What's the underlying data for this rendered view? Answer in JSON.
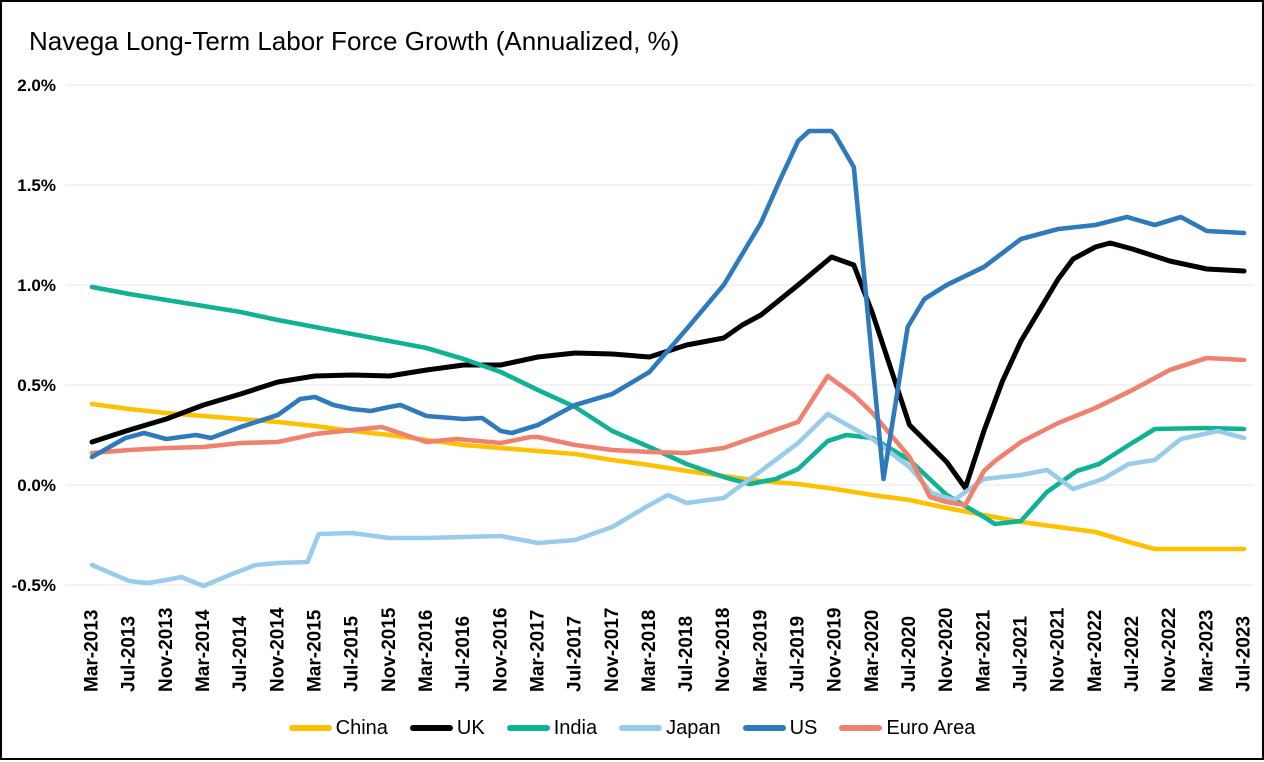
{
  "title": "Navega Long-Term Labor Force Growth (Annualized, %)",
  "chart_data": {
    "type": "line",
    "title": "Navega Long-Term Labor Force Growth (Annualized, %)",
    "grid": true,
    "legend_position": "bottom",
    "y_axis": {
      "ticks": [
        "2.0%",
        "1.5%",
        "1.0%",
        "0.5%",
        "0.0%",
        "-0.5%"
      ],
      "max": 2.0,
      "min": -0.5,
      "step": 0.5,
      "format": "percent"
    },
    "x_labels": [
      "Mar-2013",
      "Jul-2013",
      "Nov-2013",
      "Mar-2014",
      "Jul-2014",
      "Nov-2014",
      "Mar-2015",
      "Jul-2015",
      "Nov-2015",
      "Mar-2016",
      "Jul-2016",
      "Nov-2016",
      "Mar-2017",
      "Jul-2017",
      "Nov-2017",
      "Mar-2018",
      "Jul-2018",
      "Nov-2018",
      "Mar-2019",
      "Jul-2019",
      "Nov-2019",
      "Mar-2020",
      "Jul-2020",
      "Nov-2020",
      "Mar-2021",
      "Jul-2021",
      "Nov-2021",
      "Mar-2022",
      "Jul-2022",
      "Nov-2022",
      "Mar-2023",
      "Jul-2023"
    ],
    "x_unit": "label_index",
    "series": [
      {
        "name": "China",
        "color": "#FFC000",
        "points": [
          [
            0,
            0.405
          ],
          [
            1,
            0.38
          ],
          [
            2,
            0.36
          ],
          [
            3,
            0.345
          ],
          [
            4,
            0.33
          ],
          [
            5,
            0.315
          ],
          [
            6,
            0.295
          ],
          [
            7,
            0.27
          ],
          [
            8,
            0.25
          ],
          [
            9,
            0.225
          ],
          [
            10,
            0.2
          ],
          [
            11,
            0.185
          ],
          [
            12,
            0.17
          ],
          [
            13,
            0.155
          ],
          [
            14,
            0.125
          ],
          [
            15,
            0.1
          ],
          [
            16,
            0.07
          ],
          [
            17,
            0.045
          ],
          [
            18,
            0.02
          ],
          [
            19,
            0.005
          ],
          [
            20,
            -0.02
          ],
          [
            21,
            -0.05
          ],
          [
            22,
            -0.075
          ],
          [
            23,
            -0.115
          ],
          [
            24,
            -0.15
          ],
          [
            25,
            -0.185
          ],
          [
            26,
            -0.21
          ],
          [
            27,
            -0.235
          ],
          [
            28,
            -0.29
          ],
          [
            28.6,
            -0.32
          ],
          [
            30,
            -0.32
          ],
          [
            31,
            -0.32
          ]
        ]
      },
      {
        "name": "UK",
        "color": "#000000",
        "points": [
          [
            0,
            0.215
          ],
          [
            1,
            0.275
          ],
          [
            2,
            0.33
          ],
          [
            3,
            0.4
          ],
          [
            4,
            0.455
          ],
          [
            5,
            0.515
          ],
          [
            6,
            0.545
          ],
          [
            7,
            0.55
          ],
          [
            8,
            0.545
          ],
          [
            9,
            0.575
          ],
          [
            10,
            0.6
          ],
          [
            11,
            0.6
          ],
          [
            12,
            0.64
          ],
          [
            13,
            0.66
          ],
          [
            14,
            0.655
          ],
          [
            15,
            0.64
          ],
          [
            16,
            0.7
          ],
          [
            17,
            0.735
          ],
          [
            17.5,
            0.8
          ],
          [
            18,
            0.85
          ],
          [
            19,
            1.0
          ],
          [
            19.9,
            1.14
          ],
          [
            20.5,
            1.1
          ],
          [
            21,
            0.86
          ],
          [
            22,
            0.3
          ],
          [
            23,
            0.115
          ],
          [
            23.5,
            -0.015
          ],
          [
            24,
            0.27
          ],
          [
            24.5,
            0.52
          ],
          [
            25,
            0.72
          ],
          [
            26,
            1.03
          ],
          [
            26.4,
            1.13
          ],
          [
            27,
            1.19
          ],
          [
            27.4,
            1.21
          ],
          [
            28,
            1.18
          ],
          [
            29,
            1.12
          ],
          [
            30,
            1.08
          ],
          [
            31,
            1.07
          ]
        ]
      },
      {
        "name": "India",
        "color": "#10B294",
        "points": [
          [
            0,
            0.99
          ],
          [
            1,
            0.955
          ],
          [
            2,
            0.925
          ],
          [
            3,
            0.895
          ],
          [
            4,
            0.865
          ],
          [
            5,
            0.825
          ],
          [
            6,
            0.79
          ],
          [
            7,
            0.755
          ],
          [
            8,
            0.72
          ],
          [
            9,
            0.685
          ],
          [
            10,
            0.63
          ],
          [
            11,
            0.565
          ],
          [
            12,
            0.475
          ],
          [
            13,
            0.39
          ],
          [
            14,
            0.27
          ],
          [
            15,
            0.19
          ],
          [
            16,
            0.105
          ],
          [
            17,
            0.04
          ],
          [
            17.7,
            0.005
          ],
          [
            18.4,
            0.03
          ],
          [
            19,
            0.08
          ],
          [
            19.8,
            0.22
          ],
          [
            20.3,
            0.25
          ],
          [
            21,
            0.235
          ],
          [
            22,
            0.125
          ],
          [
            23,
            -0.05
          ],
          [
            24,
            -0.16
          ],
          [
            24.3,
            -0.195
          ],
          [
            25,
            -0.18
          ],
          [
            25.7,
            -0.035
          ],
          [
            26.5,
            0.07
          ],
          [
            27.1,
            0.105
          ],
          [
            27.9,
            0.2
          ],
          [
            28.6,
            0.28
          ],
          [
            30,
            0.285
          ],
          [
            31,
            0.28
          ]
        ]
      },
      {
        "name": "Japan",
        "color": "#99CCEA",
        "points": [
          [
            0,
            -0.4
          ],
          [
            1,
            -0.48
          ],
          [
            1.5,
            -0.49
          ],
          [
            2,
            -0.475
          ],
          [
            2.4,
            -0.46
          ],
          [
            3,
            -0.505
          ],
          [
            3.7,
            -0.45
          ],
          [
            4.4,
            -0.4
          ],
          [
            5,
            -0.39
          ],
          [
            5.8,
            -0.385
          ],
          [
            6.1,
            -0.245
          ],
          [
            7,
            -0.24
          ],
          [
            8,
            -0.265
          ],
          [
            9,
            -0.265
          ],
          [
            10,
            -0.26
          ],
          [
            11,
            -0.255
          ],
          [
            12,
            -0.29
          ],
          [
            13,
            -0.275
          ],
          [
            14,
            -0.21
          ],
          [
            15,
            -0.1
          ],
          [
            15.5,
            -0.05
          ],
          [
            16,
            -0.09
          ],
          [
            17,
            -0.065
          ],
          [
            18,
            0.07
          ],
          [
            19,
            0.21
          ],
          [
            19.8,
            0.355
          ],
          [
            21,
            0.23
          ],
          [
            22,
            0.09
          ],
          [
            22.6,
            -0.04
          ],
          [
            23.2,
            -0.075
          ],
          [
            24,
            0.03
          ],
          [
            25,
            0.05
          ],
          [
            25.7,
            0.075
          ],
          [
            26.4,
            -0.02
          ],
          [
            27.2,
            0.03
          ],
          [
            27.9,
            0.105
          ],
          [
            28.6,
            0.125
          ],
          [
            29.3,
            0.23
          ],
          [
            30.3,
            0.27
          ],
          [
            31,
            0.235
          ]
        ]
      },
      {
        "name": "US",
        "color": "#2E7ABD",
        "points": [
          [
            0,
            0.14
          ],
          [
            0.9,
            0.235
          ],
          [
            1.4,
            0.26
          ],
          [
            2,
            0.23
          ],
          [
            2.8,
            0.25
          ],
          [
            3.2,
            0.235
          ],
          [
            4,
            0.29
          ],
          [
            5,
            0.35
          ],
          [
            5.6,
            0.43
          ],
          [
            6,
            0.44
          ],
          [
            6.5,
            0.4
          ],
          [
            7,
            0.38
          ],
          [
            7.5,
            0.37
          ],
          [
            8,
            0.39
          ],
          [
            8.3,
            0.4
          ],
          [
            9,
            0.345
          ],
          [
            10,
            0.33
          ],
          [
            10.5,
            0.335
          ],
          [
            11,
            0.27
          ],
          [
            11.3,
            0.26
          ],
          [
            12,
            0.3
          ],
          [
            13,
            0.4
          ],
          [
            14,
            0.455
          ],
          [
            15,
            0.565
          ],
          [
            16,
            0.78
          ],
          [
            17,
            1.0
          ],
          [
            18,
            1.31
          ],
          [
            18.5,
            1.52
          ],
          [
            19,
            1.72
          ],
          [
            19.3,
            1.77
          ],
          [
            19.9,
            1.77
          ],
          [
            20,
            1.75
          ],
          [
            20.5,
            1.59
          ],
          [
            21.3,
            0.03
          ],
          [
            21.95,
            0.79
          ],
          [
            22.4,
            0.93
          ],
          [
            23,
            1.0
          ],
          [
            24,
            1.09
          ],
          [
            25,
            1.23
          ],
          [
            26,
            1.28
          ],
          [
            27,
            1.3
          ],
          [
            27.85,
            1.34
          ],
          [
            28.6,
            1.3
          ],
          [
            29.3,
            1.34
          ],
          [
            30,
            1.27
          ],
          [
            31,
            1.26
          ]
        ]
      },
      {
        "name": "Euro Area",
        "color": "#F0816F",
        "points": [
          [
            0,
            0.16
          ],
          [
            1,
            0.175
          ],
          [
            2,
            0.185
          ],
          [
            3,
            0.19
          ],
          [
            4,
            0.21
          ],
          [
            5,
            0.215
          ],
          [
            6,
            0.255
          ],
          [
            7,
            0.275
          ],
          [
            7.8,
            0.29
          ],
          [
            9,
            0.215
          ],
          [
            9.8,
            0.23
          ],
          [
            11,
            0.21
          ],
          [
            11.8,
            0.24
          ],
          [
            12,
            0.24
          ],
          [
            13,
            0.2
          ],
          [
            14,
            0.175
          ],
          [
            15,
            0.165
          ],
          [
            16,
            0.16
          ],
          [
            17,
            0.185
          ],
          [
            18,
            0.25
          ],
          [
            19,
            0.315
          ],
          [
            19.4,
            0.43
          ],
          [
            19.8,
            0.545
          ],
          [
            20.5,
            0.45
          ],
          [
            21,
            0.36
          ],
          [
            22,
            0.14
          ],
          [
            22.55,
            -0.06
          ],
          [
            23,
            -0.085
          ],
          [
            23.5,
            -0.1
          ],
          [
            24,
            0.07
          ],
          [
            24.3,
            0.12
          ],
          [
            25,
            0.215
          ],
          [
            26,
            0.31
          ],
          [
            27,
            0.385
          ],
          [
            28,
            0.475
          ],
          [
            29,
            0.575
          ],
          [
            30,
            0.635
          ],
          [
            31,
            0.625
          ]
        ]
      }
    ],
    "draw_order": [
      "China",
      "UK",
      "India",
      "Japan",
      "Euro Area",
      "US"
    ]
  }
}
